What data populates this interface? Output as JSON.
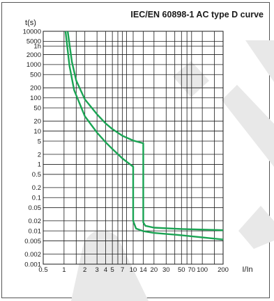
{
  "chart_data": {
    "type": "line",
    "title": "IEC/EN 60898-1 AC type D curve",
    "xlabel": "I/In",
    "ylabel": "t(s)",
    "x_scale": "log",
    "y_scale": "log",
    "xlim": [
      0.5,
      200
    ],
    "ylim": [
      0.001,
      10000
    ],
    "x_ticks": [
      {
        "value": 0.5,
        "label": "0.5"
      },
      {
        "value": 1,
        "label": "1"
      },
      {
        "value": 2,
        "label": "2"
      },
      {
        "value": 3,
        "label": "3"
      },
      {
        "value": 4,
        "label": "4"
      },
      {
        "value": 5,
        "label": "5"
      },
      {
        "value": 7,
        "label": "7"
      },
      {
        "value": 10,
        "label": "10"
      },
      {
        "value": 14,
        "label": "14"
      },
      {
        "value": 20,
        "label": "20"
      },
      {
        "value": 30,
        "label": "30"
      },
      {
        "value": 50,
        "label": "50"
      },
      {
        "value": 70,
        "label": "70"
      },
      {
        "value": 100,
        "label": "100"
      },
      {
        "value": 200,
        "label": "200"
      }
    ],
    "y_ticks": [
      {
        "value": 10000,
        "label": "10000"
      },
      {
        "value": 5000,
        "label": "5000"
      },
      {
        "value": 3600,
        "label": "1h"
      },
      {
        "value": 2000,
        "label": "2000"
      },
      {
        "value": 1000,
        "label": "1000"
      },
      {
        "value": 500,
        "label": "500"
      },
      {
        "value": 200,
        "label": "200"
      },
      {
        "value": 100,
        "label": "100"
      },
      {
        "value": 50,
        "label": "50"
      },
      {
        "value": 20,
        "label": "20"
      },
      {
        "value": 10,
        "label": "10"
      },
      {
        "value": 5,
        "label": "5"
      },
      {
        "value": 2,
        "label": "2"
      },
      {
        "value": 1,
        "label": "1"
      },
      {
        "value": 0.5,
        "label": "0.5"
      },
      {
        "value": 0.2,
        "label": "0.2"
      },
      {
        "value": 0.1,
        "label": "0.1"
      },
      {
        "value": 0.05,
        "label": "0.05"
      },
      {
        "value": 0.02,
        "label": "0.02"
      },
      {
        "value": 0.01,
        "label": "0.01"
      },
      {
        "value": 0.005,
        "label": "0.005"
      },
      {
        "value": 0.002,
        "label": "0.002"
      },
      {
        "value": 0.001,
        "label": "0.001"
      }
    ],
    "x_grid": [
      0.5,
      1,
      1.5,
      2,
      3,
      4,
      5,
      6,
      7,
      8,
      10,
      14,
      20,
      30,
      40,
      50,
      60,
      70,
      100,
      150,
      200
    ],
    "y_grid": [
      10000,
      5000,
      3600,
      2000,
      1000,
      500,
      200,
      100,
      50,
      20,
      10,
      5,
      2,
      1,
      0.5,
      0.2,
      0.1,
      0.05,
      0.02,
      0.01,
      0.005,
      0.002,
      0.001
    ],
    "grid": true,
    "series": [
      {
        "points": [
          [
            1.13,
            10000
          ],
          [
            1.3,
            1200
          ],
          [
            1.5,
            330
          ],
          [
            2,
            90
          ],
          [
            3,
            32
          ],
          [
            4,
            17
          ],
          [
            5,
            11.5
          ],
          [
            7,
            7.2
          ],
          [
            10,
            5.2
          ],
          [
            14,
            4.3
          ],
          [
            14,
            0.018
          ],
          [
            15,
            0.0142
          ],
          [
            20,
            0.0125
          ],
          [
            50,
            0.0114
          ],
          [
            200,
            0.0105
          ]
        ]
      },
      {
        "points": [
          [
            1.05,
            10000
          ],
          [
            1.2,
            900
          ],
          [
            1.4,
            170
          ],
          [
            2,
            28
          ],
          [
            3,
            9
          ],
          [
            4,
            4.6
          ],
          [
            5,
            2.9
          ],
          [
            7,
            1.5
          ],
          [
            10,
            0.85
          ],
          [
            10,
            0.02
          ],
          [
            11,
            0.0118
          ],
          [
            14,
            0.0098
          ],
          [
            20,
            0.0087
          ],
          [
            50,
            0.0074
          ],
          [
            200,
            0.0055
          ]
        ]
      }
    ],
    "colors": {
      "curve": "#1aa353",
      "grid": "#1a1a1a",
      "watermark": "#e8e8e8",
      "frame": "#555555"
    }
  }
}
